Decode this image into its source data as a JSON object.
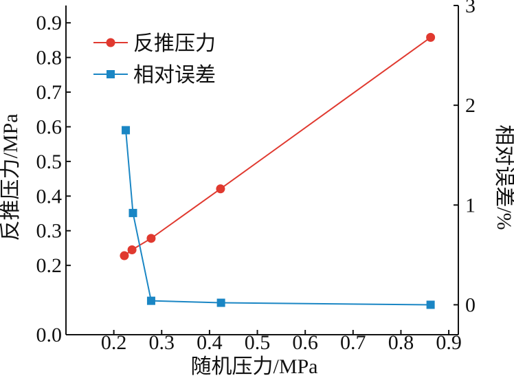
{
  "chart_data": {
    "type": "line",
    "title": "",
    "xlabel": "随机压力/MPa",
    "ylabel": "反推压力/MPa",
    "y2label": "相对误差/%",
    "xlim": [
      0.1,
      0.92
    ],
    "ylim": [
      0.0,
      0.95
    ],
    "y2lim": [
      -0.3,
      3.0
    ],
    "xticks": [
      0.2,
      0.3,
      0.4,
      0.5,
      0.6,
      0.7,
      0.8,
      0.9
    ],
    "xtick_labels": [
      "0.2",
      "0.3",
      "0.4",
      "0.5",
      "0.6",
      "0.7",
      "0.8",
      "0.9"
    ],
    "yticks": [
      0.2,
      0.3,
      0.4,
      0.5,
      0.6,
      0.7,
      0.8,
      0.9
    ],
    "ytick_labels": [
      "0.2",
      "0.3",
      "0.4",
      "0.5",
      "0.6",
      "0.7",
      "0.8",
      "0.9"
    ],
    "y_origin_label": "0.0",
    "y2ticks": [
      0,
      1,
      2,
      3
    ],
    "y2tick_labels": [
      "0",
      "1",
      "2",
      "3"
    ],
    "grid": false,
    "legend_position": "top-left",
    "series": [
      {
        "name": "反推压力",
        "axis": "left",
        "marker": "circle",
        "color": "#e0392f",
        "x": [
          0.222,
          0.238,
          0.278,
          0.423,
          0.862
        ],
        "y": [
          0.228,
          0.245,
          0.278,
          0.421,
          0.858
        ]
      },
      {
        "name": "相对误差",
        "axis": "right",
        "marker": "square",
        "color": "#1a86c4",
        "x": [
          0.225,
          0.24,
          0.278,
          0.424,
          0.862
        ],
        "y": [
          1.75,
          0.92,
          0.04,
          0.02,
          0.0
        ]
      }
    ]
  }
}
